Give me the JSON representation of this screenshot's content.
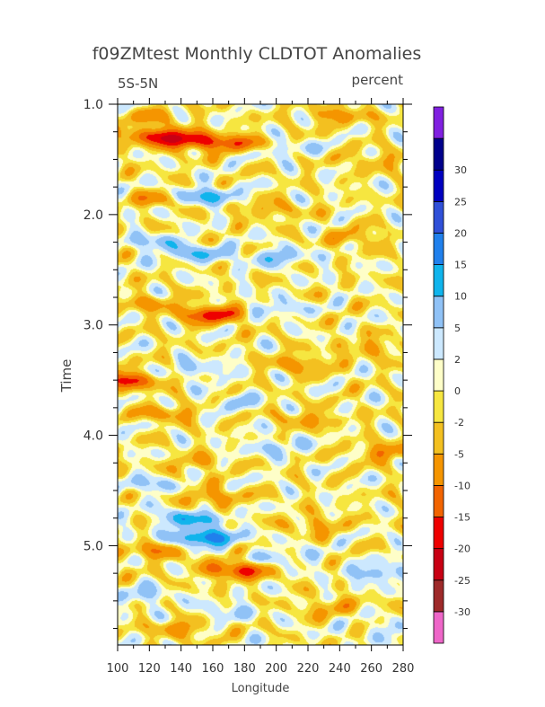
{
  "chart_data": {
    "type": "heatmap",
    "title": "f09ZMtest Monthly CLDTOT Anomalies",
    "left_string": "5S-5N",
    "right_string": "percent",
    "xlabel": "Longitude",
    "ylabel": "Time",
    "xlim": [
      100,
      280
    ],
    "ylim": [
      1.0,
      5.9
    ],
    "y_inverted": true,
    "x_ticks": [
      100,
      120,
      140,
      160,
      180,
      200,
      220,
      240,
      260,
      280
    ],
    "x_tick_labels": [
      "100",
      "120",
      "140",
      "160",
      "180",
      "200",
      "220",
      "240",
      "260",
      "280"
    ],
    "y_ticks": [
      1.0,
      2.0,
      3.0,
      4.0,
      5.0
    ],
    "y_tick_labels": [
      "1.0",
      "2.0",
      "3.0",
      "4.0",
      "5.0"
    ],
    "colorbar": {
      "levels": [
        -30,
        -25,
        -20,
        -15,
        -10,
        -5,
        -2,
        0,
        2,
        5,
        10,
        15,
        20,
        25,
        30
      ],
      "level_labels": [
        "-30",
        "-25",
        "-20",
        "-15",
        "-10",
        "-5",
        "-2",
        "0",
        "2",
        "5",
        "10",
        "15",
        "20",
        "25",
        "30"
      ],
      "colors": [
        "#ee66c8",
        "#9e2a2a",
        "#c80014",
        "#ee0000",
        "#f26400",
        "#f59500",
        "#f3c020",
        "#f6e640",
        "#fefec8",
        "#cce8fe",
        "#90c2f6",
        "#10b4ec",
        "#2080ec",
        "#3050d8",
        "#0000c0",
        "#00008c",
        "#8020e0"
      ]
    },
    "features": [
      {
        "lon": 125,
        "t": 1.28,
        "v": -16
      },
      {
        "lon": 145,
        "t": 1.33,
        "v": -16
      },
      {
        "lon": 175,
        "t": 1.35,
        "v": -12
      },
      {
        "lon": 240,
        "t": 1.1,
        "v": -7
      },
      {
        "lon": 120,
        "t": 1.1,
        "v": -6
      },
      {
        "lon": 260,
        "t": 1.5,
        "v": -5
      },
      {
        "lon": 205,
        "t": 1.4,
        "v": 5
      },
      {
        "lon": 155,
        "t": 1.83,
        "v": 12
      },
      {
        "lon": 125,
        "t": 1.85,
        "v": -7
      },
      {
        "lon": 195,
        "t": 1.95,
        "v": -6
      },
      {
        "lon": 150,
        "t": 2.35,
        "v": 9
      },
      {
        "lon": 200,
        "t": 2.38,
        "v": 8
      },
      {
        "lon": 125,
        "t": 2.25,
        "v": 7
      },
      {
        "lon": 250,
        "t": 2.2,
        "v": -6
      },
      {
        "lon": 120,
        "t": 2.8,
        "v": -6
      },
      {
        "lon": 160,
        "t": 2.9,
        "v": -18
      },
      {
        "lon": 200,
        "t": 2.85,
        "v": 6
      },
      {
        "lon": 105,
        "t": 3.5,
        "v": -16
      },
      {
        "lon": 215,
        "t": 3.35,
        "v": -8
      },
      {
        "lon": 150,
        "t": 3.4,
        "v": 6
      },
      {
        "lon": 260,
        "t": 3.2,
        "v": -6
      },
      {
        "lon": 130,
        "t": 3.8,
        "v": -7
      },
      {
        "lon": 220,
        "t": 3.85,
        "v": -6
      },
      {
        "lon": 175,
        "t": 3.7,
        "v": 5
      },
      {
        "lon": 270,
        "t": 4.15,
        "v": -9
      },
      {
        "lon": 200,
        "t": 4.1,
        "v": 6
      },
      {
        "lon": 150,
        "t": 4.25,
        "v": -5
      },
      {
        "lon": 120,
        "t": 4.45,
        "v": 6
      },
      {
        "lon": 160,
        "t": 4.55,
        "v": -8
      },
      {
        "lon": 145,
        "t": 4.75,
        "v": 12
      },
      {
        "lon": 155,
        "t": 4.92,
        "v": 19
      },
      {
        "lon": 225,
        "t": 4.8,
        "v": -6
      },
      {
        "lon": 125,
        "t": 5.05,
        "v": -8
      },
      {
        "lon": 175,
        "t": 5.22,
        "v": -16
      },
      {
        "lon": 265,
        "t": 5.25,
        "v": 9
      },
      {
        "lon": 205,
        "t": 5.1,
        "v": 5
      },
      {
        "lon": 115,
        "t": 5.45,
        "v": 6
      },
      {
        "lon": 235,
        "t": 5.55,
        "v": -6
      },
      {
        "lon": 170,
        "t": 5.6,
        "v": 5
      },
      {
        "lon": 140,
        "t": 5.75,
        "v": -7
      },
      {
        "lon": 270,
        "t": 5.75,
        "v": 4
      }
    ]
  }
}
